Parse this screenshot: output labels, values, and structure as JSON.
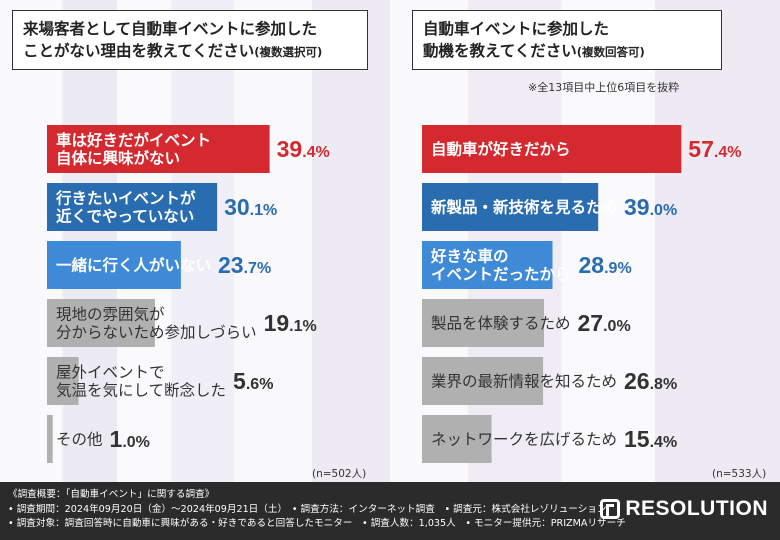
{
  "left_panel": {
    "title_line1": "来場客者として自動車イベントに参加した",
    "title_line2": "ことがない理由を教えてください",
    "title_suffix": "(複数選択可)",
    "sample": "(n=502人)"
  },
  "right_panel": {
    "title_line1": "自動車イベントに参加した",
    "title_line2": "動機を教えてください",
    "title_suffix": "(複数回答可)",
    "note": "※全13項目中上位6項目を抜粋",
    "sample": "(n=533人)"
  },
  "colors": {
    "red": "#d42a2f",
    "blue": "#2a6cb0",
    "lightblue": "#3f8ad6",
    "gray": "#b0b0b0"
  },
  "chart_data": [
    {
      "type": "bar",
      "title": "来場客者として自動車イベントに参加したことがない理由を教えてください(複数選択可)",
      "categories": [
        "車は好きだがイベント自体に興味がない",
        "行きたいイベントが近くでやっていない",
        "一緒に行く人がいない",
        "現地の雰囲気が分からないため参加しづらい",
        "屋外イベントで気温を気にして断念した",
        "その他"
      ],
      "label_lines": [
        [
          "車は好きだがイベント",
          "自体に興味がない"
        ],
        [
          "行きたいイベントが",
          "近くでやっていない"
        ],
        [
          "一緒に行く人がいない"
        ],
        [
          "現地の雰囲気が",
          "分からないため参加しづらい"
        ],
        [
          "屋外イベントで",
          "気温を気にして断念した"
        ],
        [
          "その他"
        ]
      ],
      "values": [
        39.4,
        30.1,
        23.7,
        19.1,
        5.6,
        1.0
      ],
      "value_labels": [
        "39.4%",
        "30.1%",
        "23.7%",
        "19.1%",
        "5.6%",
        "1.0%"
      ],
      "bar_colors": [
        "#d42a2f",
        "#2a6cb0",
        "#3f8ad6",
        "#b0b0b0",
        "#b0b0b0",
        "#b0b0b0"
      ],
      "value_colors": [
        "#d42a2f",
        "#2a6cb0",
        "#2a6cb0",
        "#333333",
        "#333333",
        "#333333"
      ],
      "xlim": [
        0,
        40
      ]
    },
    {
      "type": "bar",
      "title": "自動車イベントに参加した動機を教えてください(複数回答可)",
      "categories": [
        "自動車が好きだから",
        "新製品・新技術を見るため",
        "好きな車のイベントだったから",
        "製品を体験するため",
        "業界の最新情報を知るため",
        "ネットワークを広げるため"
      ],
      "label_lines": [
        [
          "自動車が好きだから"
        ],
        [
          "新製品・新技術を見るため"
        ],
        [
          "好きな車の",
          "イベントだったから"
        ],
        [
          "製品を体験するため"
        ],
        [
          "業界の最新情報を知るため"
        ],
        [
          "ネットワークを広げるため"
        ]
      ],
      "values": [
        57.4,
        39.0,
        28.9,
        27.0,
        26.8,
        15.4
      ],
      "value_labels": [
        "57.4%",
        "39.0%",
        "28.9%",
        "27.0%",
        "26.8%",
        "15.4%"
      ],
      "bar_colors": [
        "#d42a2f",
        "#2a6cb0",
        "#3f8ad6",
        "#b0b0b0",
        "#b0b0b0",
        "#b0b0b0"
      ],
      "value_colors": [
        "#d42a2f",
        "#2a6cb0",
        "#2a6cb0",
        "#333333",
        "#333333",
        "#333333"
      ],
      "xlim": [
        0,
        58
      ]
    }
  ],
  "footer": {
    "lines": [
      "《調査概要：「自動車イベント」に関する調査》",
      "• 調査期間：2024年09月20日（金）～2024年09月21日（土）　• 調査方法：インターネット調査　• 調査元：株式会社レゾリューション",
      "• 調査対象：調査回答時に自動車に興味がある・好きであると回答したモニター　• 調査人数：1,035人　• モニター提供元：PRIZMAリサーチ"
    ],
    "brand": "RESOLUTION"
  }
}
